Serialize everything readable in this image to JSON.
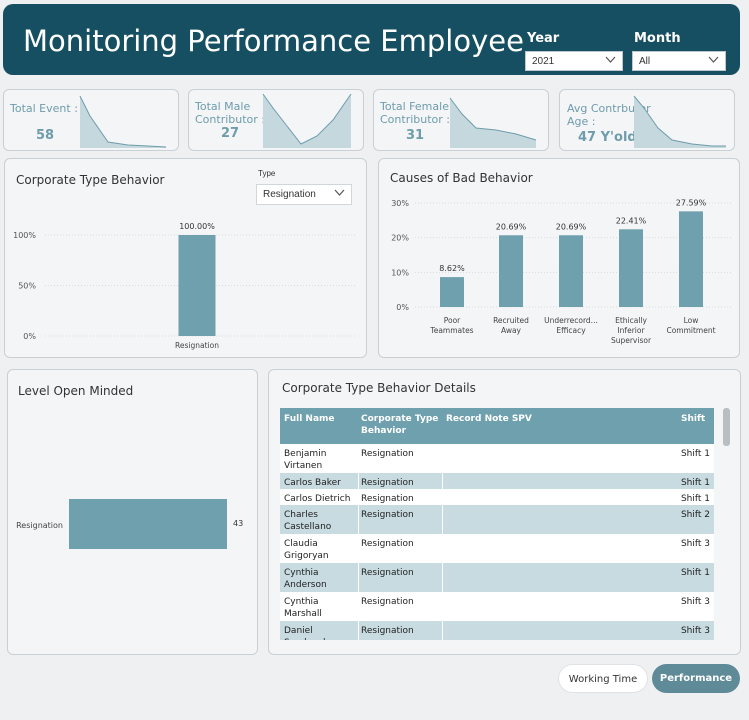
{
  "header": {
    "title": "Monitoring Performance Employee",
    "year_label": "Year",
    "year_value": "2021",
    "month_label": "Month",
    "month_value": "All"
  },
  "kpis": [
    {
      "label_line1": "Total Event :",
      "label_line2": "",
      "value": "58"
    },
    {
      "label_line1": "Total Male",
      "label_line2": "Contributor :",
      "value": "27"
    },
    {
      "label_line1": "Total Female",
      "label_line2": "Contributor :",
      "value": "31"
    },
    {
      "label_line1": "Avg Contrbutor",
      "label_line2": "Age :",
      "value": "47 Y'old"
    }
  ],
  "corporate_type": {
    "title": "Corporate Type Behavior",
    "type_label": "Type",
    "type_value": "Resignation"
  },
  "causes": {
    "title": "Causes of Bad Behavior"
  },
  "level_open": {
    "title": "Level Open Minded"
  },
  "details": {
    "title": "Corporate Type Behavior Details",
    "headers": {
      "full_name": "Full Name",
      "corp_type_1": "Corporate Type",
      "corp_type_2": "Behavior",
      "record_note": "Record Note SPV",
      "shift": "Shift"
    },
    "rows": [
      {
        "name1": "Benjamin",
        "name2": "Virtanen",
        "type": "Resignation",
        "shift": "Shift 1"
      },
      {
        "name1": "Carlos Baker",
        "name2": "",
        "type": "Resignation",
        "shift": "Shift 1"
      },
      {
        "name1": "Carlos Dietrich",
        "name2": "",
        "type": "Resignation",
        "shift": "Shift 1"
      },
      {
        "name1": "Charles",
        "name2": "Castellano",
        "type": "Resignation",
        "shift": "Shift 2"
      },
      {
        "name1": "Claudia",
        "name2": "Grigoryan",
        "type": "Resignation",
        "shift": "Shift 3"
      },
      {
        "name1": "Cynthia",
        "name2": "Anderson",
        "type": "Resignation",
        "shift": "Shift 1"
      },
      {
        "name1": "Cynthia",
        "name2": "Marshall",
        "type": "Resignation",
        "shift": "Shift 3"
      },
      {
        "name1": "Daniel",
        "name2": "Sandoval",
        "type": "Resignation",
        "shift": "Shift 3"
      }
    ]
  },
  "nav": {
    "working_time": "Working Time",
    "performance": "Performance"
  },
  "colors": {
    "header_bg": "#174f62",
    "bar": "#6fa0ae",
    "accent_text": "#6f9cab"
  },
  "chart_data": [
    {
      "type": "bar",
      "title": "Corporate Type Behavior",
      "categories": [
        "Resignation"
      ],
      "values": [
        100.0
      ],
      "data_labels": [
        "100.00%"
      ],
      "y_ticks": [
        "0%",
        "50%",
        "100%"
      ],
      "ylim": [
        0,
        100
      ]
    },
    {
      "type": "bar",
      "title": "Causes of Bad Behavior",
      "categories": [
        "Poor Teammates",
        "Recruited Away",
        "Underrecord... Efficacy",
        "Ethically Inferior Supervisor",
        "Low Commitment"
      ],
      "values": [
        8.62,
        20.69,
        20.69,
        22.41,
        27.59
      ],
      "data_labels": [
        "8.62%",
        "20.69%",
        "20.69%",
        "22.41%",
        "27.59%"
      ],
      "y_ticks": [
        "0%",
        "10%",
        "20%",
        "30%"
      ],
      "ylim": [
        0,
        30
      ]
    },
    {
      "type": "bar",
      "orientation": "horizontal",
      "title": "Level Open Minded",
      "categories": [
        "Resignation"
      ],
      "values": [
        43
      ],
      "data_labels": [
        "43"
      ]
    }
  ]
}
